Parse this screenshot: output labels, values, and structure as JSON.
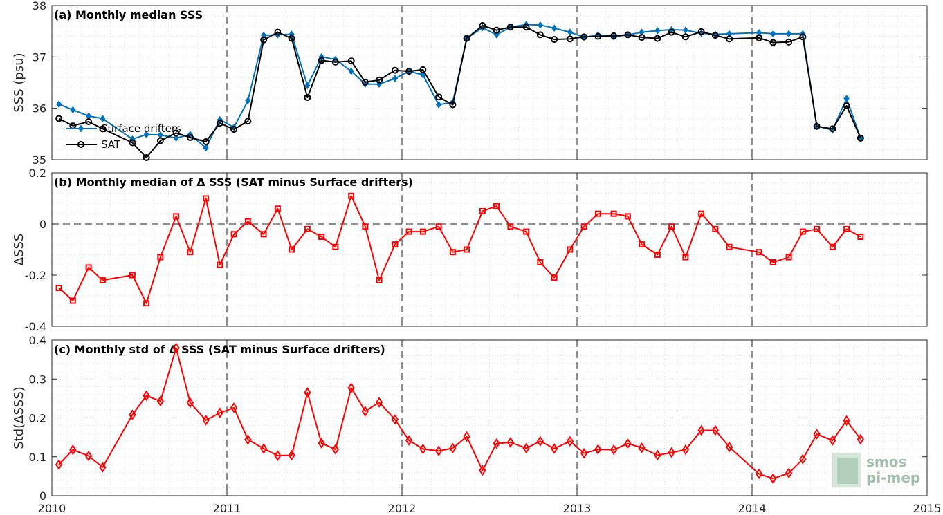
{
  "chart_data": [
    {
      "type": "line",
      "title": "(a) Monthly median SSS",
      "ylabel": "SSS (psu)",
      "ylim": [
        35,
        38
      ],
      "yticks": [
        35,
        36,
        37,
        38
      ],
      "xlim": [
        2010,
        2015
      ],
      "xticks": [
        "2010",
        "2011",
        "2012",
        "2013",
        "2014",
        "2015"
      ],
      "grid": "on",
      "legend": "lower-left",
      "series": [
        {
          "name": "Surface drifters",
          "color": "#0072bd",
          "marker": "diamond",
          "x": [
            2010.04,
            2010.12,
            2010.21,
            2010.29,
            2010.46,
            2010.54,
            2010.62,
            2010.71,
            2010.79,
            2010.88,
            2010.96,
            2011.04,
            2011.12,
            2011.21,
            2011.29,
            2011.37,
            2011.46,
            2011.54,
            2011.62,
            2011.71,
            2011.79,
            2011.87,
            2011.96,
            2012.04,
            2012.12,
            2012.21,
            2012.29,
            2012.37,
            2012.46,
            2012.54,
            2012.62,
            2012.71,
            2012.79,
            2012.87,
            2012.96,
            2013.04,
            2013.12,
            2013.21,
            2013.29,
            2013.37,
            2013.46,
            2013.54,
            2013.62,
            2013.71,
            2013.79,
            2013.87,
            2014.04,
            2014.12,
            2014.21,
            2014.29,
            2014.37,
            2014.46,
            2014.54,
            2014.62
          ],
          "values": [
            36.08,
            35.97,
            35.85,
            35.8,
            35.4,
            35.49,
            35.48,
            35.42,
            35.49,
            35.23,
            35.78,
            35.63,
            36.15,
            37.42,
            37.43,
            37.44,
            36.44,
            37.0,
            36.95,
            36.72,
            36.47,
            36.47,
            36.58,
            36.72,
            36.65,
            36.07,
            36.12,
            37.36,
            37.57,
            37.43,
            37.58,
            37.63,
            37.62,
            37.56,
            37.48,
            37.38,
            37.43,
            37.39,
            37.43,
            37.48,
            37.51,
            37.53,
            37.52,
            37.46,
            37.44,
            37.45,
            37.47,
            37.45,
            37.45,
            37.45,
            35.65,
            35.58,
            36.19,
            35.42
          ]
        },
        {
          "name": "SAT",
          "color": "#000000",
          "marker": "circle",
          "x": [
            2010.04,
            2010.12,
            2010.21,
            2010.29,
            2010.46,
            2010.54,
            2010.62,
            2010.71,
            2010.79,
            2010.88,
            2010.96,
            2011.04,
            2011.12,
            2011.21,
            2011.29,
            2011.37,
            2011.46,
            2011.54,
            2011.62,
            2011.71,
            2011.79,
            2011.87,
            2011.96,
            2012.04,
            2012.12,
            2012.21,
            2012.29,
            2012.37,
            2012.46,
            2012.54,
            2012.62,
            2012.71,
            2012.79,
            2012.87,
            2012.96,
            2013.04,
            2013.12,
            2013.21,
            2013.29,
            2013.37,
            2013.46,
            2013.54,
            2013.62,
            2013.71,
            2013.79,
            2013.87,
            2014.04,
            2014.12,
            2014.21,
            2014.29,
            2014.37,
            2014.46,
            2014.54,
            2014.62
          ],
          "values": [
            35.8,
            35.66,
            35.74,
            35.6,
            35.33,
            35.04,
            35.37,
            35.52,
            35.43,
            35.35,
            35.71,
            35.59,
            35.75,
            37.33,
            37.48,
            37.36,
            36.21,
            36.93,
            36.9,
            36.92,
            36.51,
            36.55,
            36.74,
            36.72,
            36.75,
            36.22,
            36.07,
            37.36,
            37.61,
            37.52,
            37.58,
            37.58,
            37.43,
            37.34,
            37.35,
            37.39,
            37.4,
            37.41,
            37.43,
            37.38,
            37.36,
            37.48,
            37.39,
            37.49,
            37.42,
            37.35,
            37.37,
            37.28,
            37.29,
            37.39,
            35.65,
            35.6,
            36.05,
            35.42
          ]
        }
      ]
    },
    {
      "type": "line",
      "title": "(b) Monthly median of Δ SSS (SAT minus Surface drifters)",
      "ylabel": "ΔSSS",
      "ylim": [
        -0.4,
        0.2
      ],
      "yticks": [
        -0.4,
        -0.2,
        0,
        0.2
      ],
      "ytick_labels": [
        "-0.4",
        "-0.2",
        "0",
        "0.2"
      ],
      "xlim": [
        2010,
        2015
      ],
      "reference_line": 0,
      "grid": "on",
      "series": [
        {
          "name": "",
          "color": "#ff0000",
          "marker": "square",
          "x": [
            2010.04,
            2010.12,
            2010.21,
            2010.29,
            2010.46,
            2010.54,
            2010.62,
            2010.71,
            2010.79,
            2010.88,
            2010.96,
            2011.04,
            2011.12,
            2011.21,
            2011.29,
            2011.37,
            2011.46,
            2011.54,
            2011.62,
            2011.71,
            2011.79,
            2011.87,
            2011.96,
            2012.04,
            2012.12,
            2012.21,
            2012.29,
            2012.37,
            2012.46,
            2012.54,
            2012.62,
            2012.71,
            2012.79,
            2012.87,
            2012.96,
            2013.04,
            2013.12,
            2013.21,
            2013.29,
            2013.37,
            2013.46,
            2013.54,
            2013.62,
            2013.71,
            2013.79,
            2013.87,
            2014.04,
            2014.12,
            2014.21,
            2014.29,
            2014.37,
            2014.46,
            2014.54,
            2014.62
          ],
          "values": [
            -0.25,
            -0.3,
            -0.17,
            -0.22,
            -0.2,
            -0.31,
            -0.13,
            0.03,
            -0.11,
            0.1,
            -0.16,
            -0.04,
            0.01,
            -0.04,
            0.06,
            -0.1,
            -0.02,
            -0.05,
            -0.09,
            0.11,
            -0.01,
            -0.22,
            -0.08,
            -0.03,
            -0.03,
            -0.01,
            -0.11,
            -0.1,
            0.05,
            0.07,
            -0.01,
            -0.03,
            -0.15,
            -0.21,
            -0.1,
            -0.01,
            0.04,
            0.04,
            0.03,
            -0.08,
            -0.12,
            -0.01,
            -0.13,
            0.04,
            -0.02,
            -0.09,
            -0.11,
            -0.15,
            -0.13,
            -0.03,
            -0.02,
            -0.09,
            -0.02,
            -0.05
          ]
        }
      ]
    },
    {
      "type": "line",
      "title": "(c) Monthly std of Δ SSS (SAT minus Surface drifters)",
      "ylabel": "Std(ΔSSS)",
      "ylim": [
        0,
        0.4
      ],
      "yticks": [
        0,
        0.1,
        0.2,
        0.3,
        0.4
      ],
      "ytick_labels": [
        "0",
        "0.1",
        "0.2",
        "0.3",
        "0.4"
      ],
      "xlim": [
        2010,
        2015
      ],
      "xticks": [
        "2010",
        "2011",
        "2012",
        "2013",
        "2014",
        "2015"
      ],
      "grid": "on",
      "series": [
        {
          "name": "",
          "color": "#ff0000",
          "marker": "diamond",
          "x": [
            2010.04,
            2010.12,
            2010.21,
            2010.29,
            2010.46,
            2010.54,
            2010.62,
            2010.71,
            2010.79,
            2010.88,
            2010.96,
            2011.04,
            2011.12,
            2011.21,
            2011.29,
            2011.37,
            2011.46,
            2011.54,
            2011.62,
            2011.71,
            2011.79,
            2011.87,
            2011.96,
            2012.04,
            2012.12,
            2012.21,
            2012.29,
            2012.37,
            2012.46,
            2012.54,
            2012.62,
            2012.71,
            2012.79,
            2012.87,
            2012.96,
            2013.04,
            2013.12,
            2013.21,
            2013.29,
            2013.37,
            2013.46,
            2013.54,
            2013.62,
            2013.71,
            2013.79,
            2013.87,
            2014.04,
            2014.12,
            2014.21,
            2014.29,
            2014.37,
            2014.46,
            2014.54,
            2014.62
          ],
          "values": [
            0.08,
            0.118,
            0.102,
            0.073,
            0.208,
            0.257,
            0.243,
            0.38,
            0.239,
            0.194,
            0.213,
            0.226,
            0.144,
            0.121,
            0.103,
            0.104,
            0.265,
            0.135,
            0.119,
            0.277,
            0.217,
            0.24,
            0.196,
            0.142,
            0.12,
            0.115,
            0.122,
            0.152,
            0.065,
            0.134,
            0.137,
            0.122,
            0.14,
            0.121,
            0.14,
            0.109,
            0.119,
            0.118,
            0.134,
            0.123,
            0.104,
            0.111,
            0.118,
            0.168,
            0.168,
            0.125,
            0.056,
            0.044,
            0.058,
            0.094,
            0.158,
            0.142,
            0.193,
            0.145
          ]
        }
      ]
    }
  ],
  "logo": {
    "line1": "smos",
    "line2": "pi-mep"
  }
}
